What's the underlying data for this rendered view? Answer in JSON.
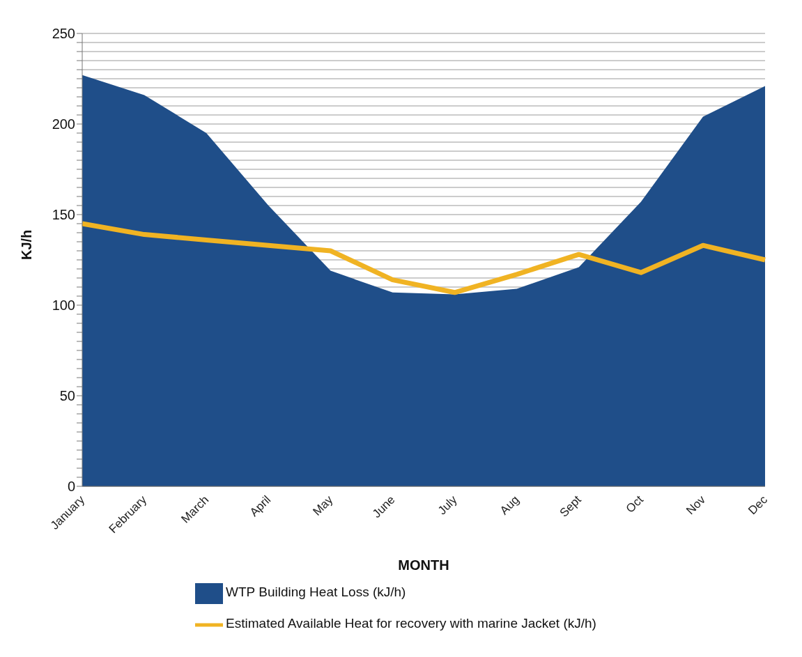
{
  "chart_data": {
    "type": "area",
    "xlabel": "MONTH",
    "ylabel": "KJ/h",
    "categories": [
      "January",
      "February",
      "March",
      "April",
      "May",
      "June",
      "July",
      "Aug",
      "Sept",
      "Oct",
      "Nov",
      "Dec"
    ],
    "series": [
      {
        "name": "WTP Building Heat Loss (kJ/h)",
        "color": "#1f4e89",
        "values": [
          227,
          216,
          195,
          155,
          119,
          107,
          106,
          109,
          121,
          157,
          204,
          221
        ]
      },
      {
        "name": "Estimated Available Heat for recovery with marine Jacket (kJ/h)",
        "type": "line",
        "color": "#f0b323",
        "values": [
          145,
          139,
          136,
          133,
          130,
          114,
          107,
          117,
          128,
          118,
          133,
          125
        ]
      }
    ],
    "ylim": [
      0,
      250
    ],
    "yticks": [
      0,
      {
        "value": 5,
        "label": null
      },
      {
        "value": 10,
        "label": null
      },
      {
        "value": 15,
        "label": null
      },
      {
        "value": 20,
        "label": null
      },
      {
        "value": 25,
        "label": null
      },
      {
        "value": 30,
        "label": null
      },
      {
        "value": 35,
        "label": null
      },
      {
        "value": 40,
        "label": null
      },
      {
        "value": 45,
        "label": null
      },
      50,
      {
        "value": 55,
        "label": null
      },
      {
        "value": 60,
        "label": null
      },
      {
        "value": 65,
        "label": null
      },
      {
        "value": 70,
        "label": null
      },
      {
        "value": 75,
        "label": null
      },
      {
        "value": 80,
        "label": null
      },
      {
        "value": 85,
        "label": null
      },
      {
        "value": 90,
        "label": null
      },
      {
        "value": 95,
        "label": null
      },
      100,
      {
        "value": 105,
        "label": null
      },
      {
        "value": 110,
        "label": null
      },
      {
        "value": 115,
        "label": null
      },
      {
        "value": 120,
        "label": null
      },
      {
        "value": 125,
        "label": null
      },
      {
        "value": 130,
        "label": null
      },
      {
        "value": 135,
        "label": null
      },
      {
        "value": 140,
        "label": null
      },
      {
        "value": 145,
        "label": null
      },
      150,
      {
        "value": 155,
        "label": null
      },
      {
        "value": 160,
        "label": null
      },
      {
        "value": 165,
        "label": null
      },
      {
        "value": 170,
        "label": null
      },
      {
        "value": 175,
        "label": null
      },
      {
        "value": 180,
        "label": null
      },
      {
        "value": 185,
        "label": null
      },
      {
        "value": 190,
        "label": null
      },
      {
        "value": 195,
        "label": null
      },
      200,
      {
        "value": 205,
        "label": null
      },
      {
        "value": 210,
        "label": null
      },
      {
        "value": 215,
        "label": null
      },
      {
        "value": 220,
        "label": null
      },
      {
        "value": 225,
        "label": null
      },
      {
        "value": 230,
        "label": null
      },
      {
        "value": 235,
        "label": null
      },
      {
        "value": 240,
        "label": null
      },
      {
        "value": 245,
        "label": null
      },
      250
    ],
    "grid": "y",
    "legend": "bottom",
    "marker": "none",
    "line_style": "solid"
  }
}
